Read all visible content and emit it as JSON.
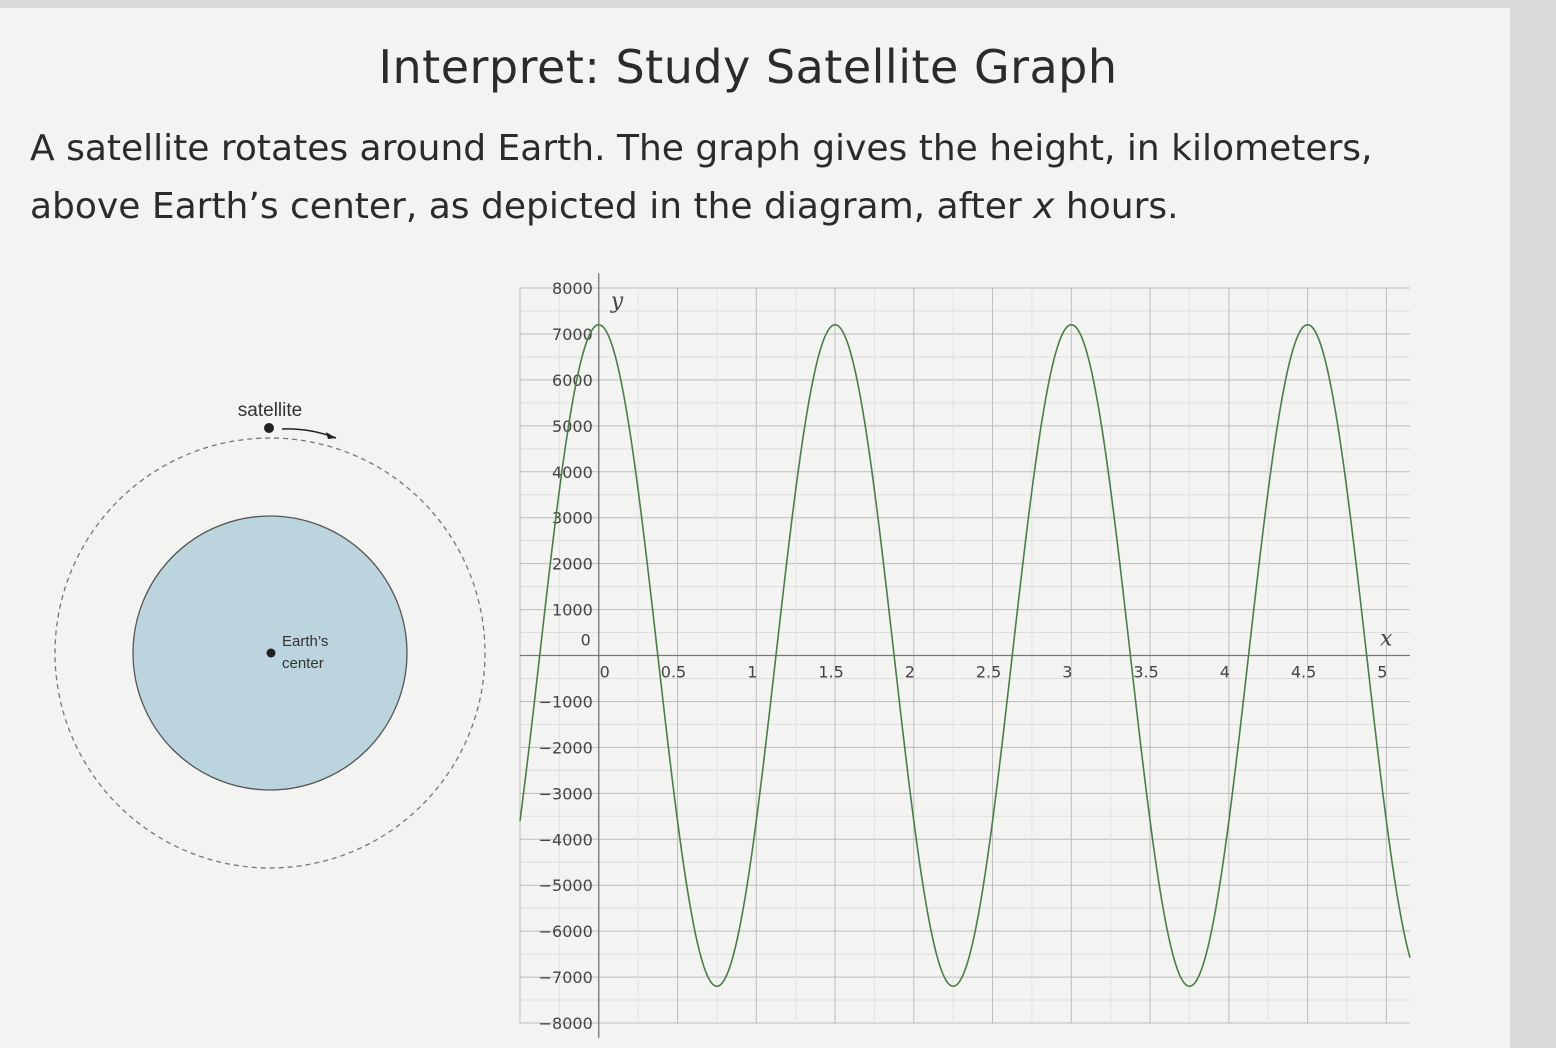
{
  "title": "Interpret: Study Satellite Graph",
  "prompt": {
    "before_var": "A satellite rotates around Earth. The graph gives the height, in kilometers, above Earth’s center, as depicted in the diagram, after ",
    "var": "x",
    "after_var": " hours."
  },
  "diagram": {
    "satellite_label": "satellite",
    "center_label_line1": "Earth’s",
    "center_label_line2": "center",
    "earth_color": "#bcd4dd",
    "dot_color": "#222222"
  },
  "chart_data": {
    "type": "line",
    "xlabel": "x",
    "ylabel": "y",
    "xlim": [
      -0.5,
      5.15
    ],
    "ylim": [
      -8000,
      8000
    ],
    "x_ticks": [
      "0",
      "0.5",
      "1",
      "1.5",
      "2",
      "2.5",
      "3",
      "3.5",
      "4",
      "4.5",
      "5"
    ],
    "y_ticks": [
      "8000",
      "7000",
      "6000",
      "5000",
      "4000",
      "3000",
      "2000",
      "1000",
      "0",
      "−1000",
      "−2000",
      "−3000",
      "−4000",
      "−5000",
      "−6000",
      "−7000",
      "−8000"
    ],
    "series": [
      {
        "color": "#4a7d4a",
        "amplitude": 7200,
        "period": 1.5,
        "peak_at": 0,
        "x_range": [
          -0.5,
          5.15
        ]
      }
    ],
    "grid": true
  }
}
